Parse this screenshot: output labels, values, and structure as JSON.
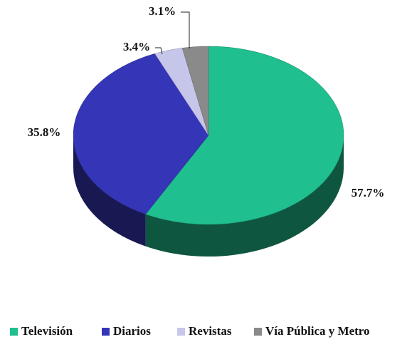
{
  "chart_data": {
    "type": "pie3d",
    "categories": [
      "Televisión",
      "Diarios",
      "Revistas",
      "Vía Pública y Metro"
    ],
    "values": [
      57.7,
      35.8,
      3.4,
      3.1
    ],
    "value_labels": [
      "57.7%",
      "35.8%",
      "3.4%",
      "3.1%"
    ],
    "colors": [
      "#1fbf8f",
      "#3535b8",
      "#c6c6ea",
      "#8a8a8a"
    ],
    "legend": "bottom"
  }
}
